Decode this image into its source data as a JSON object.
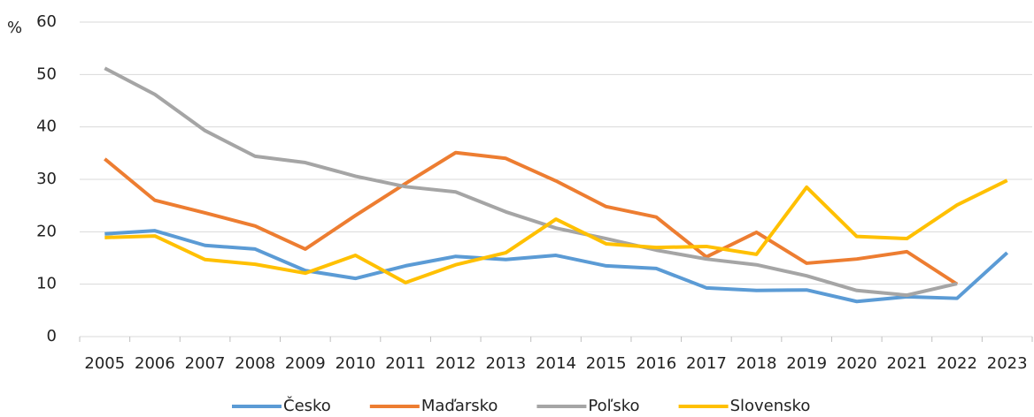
{
  "chart_data": {
    "type": "line",
    "y_label": "%",
    "categories": [
      "2005",
      "2006",
      "2007",
      "2008",
      "2009",
      "2010",
      "2011",
      "2012",
      "2013",
      "2014",
      "2015",
      "2016",
      "2017",
      "2018",
      "2019",
      "2020",
      "2021",
      "2022",
      "2023"
    ],
    "series": [
      {
        "name": "Česko",
        "color": "#5b9bd5",
        "values": [
          19.6,
          20.2,
          17.4,
          16.7,
          12.6,
          11.1,
          13.5,
          15.3,
          14.7,
          15.5,
          13.5,
          13.0,
          9.3,
          8.8,
          8.9,
          6.7,
          7.6,
          7.3,
          16.0
        ]
      },
      {
        "name": "Maďarsko",
        "color": "#ed7d31",
        "values": [
          33.9,
          26.0,
          23.6,
          21.1,
          16.7,
          23.1,
          29.2,
          35.1,
          34.0,
          29.7,
          24.8,
          22.8,
          15.2,
          19.9,
          14.0,
          14.8,
          16.2,
          10.0,
          null
        ]
      },
      {
        "name": "Poľsko",
        "color": "#a5a5a5",
        "values": [
          51.2,
          46.2,
          39.3,
          34.4,
          33.2,
          30.6,
          28.6,
          27.6,
          23.8,
          20.7,
          18.7,
          16.5,
          14.8,
          13.7,
          11.6,
          8.8,
          7.9,
          10.1,
          null
        ]
      },
      {
        "name": "Slovensko",
        "color": "#ffc000",
        "values": [
          18.9,
          19.2,
          14.7,
          13.8,
          12.1,
          15.5,
          10.3,
          13.7,
          16.0,
          22.4,
          17.7,
          17.0,
          17.2,
          15.7,
          28.5,
          19.1,
          18.7,
          25.1,
          29.8
        ]
      }
    ],
    "ylim": [
      0,
      60
    ],
    "yticks": [
      0,
      10,
      20,
      30,
      40,
      50,
      60
    ],
    "grid": true,
    "legend": "bottom"
  }
}
